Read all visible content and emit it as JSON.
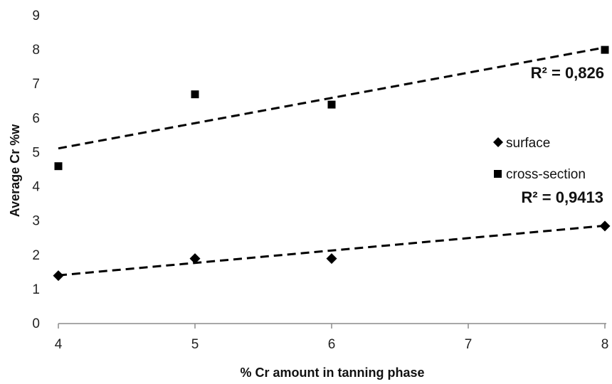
{
  "chart_data": {
    "type": "scatter",
    "title": "",
    "xlabel": "% Cr amount in tanning phase",
    "ylabel": "Average Cr %w",
    "xlim": [
      4,
      8
    ],
    "ylim": [
      0,
      9
    ],
    "x_ticks": [
      "4",
      "5",
      "6",
      "7",
      "8"
    ],
    "y_ticks": [
      "0",
      "1",
      "2",
      "3",
      "4",
      "5",
      "6",
      "7",
      "8",
      "9"
    ],
    "grid": false,
    "legend_position": "right",
    "series": [
      {
        "name": "surface",
        "marker": "diamond",
        "color": "#000000",
        "points": [
          [
            4,
            1.4
          ],
          [
            5,
            1.9
          ],
          [
            6,
            1.9
          ],
          [
            8,
            2.85
          ]
        ],
        "trendline": {
          "type": "linear",
          "style": "dashed",
          "from": [
            4,
            1.41
          ],
          "to": [
            8,
            2.86
          ]
        },
        "r2_label": "R² = 0,9413"
      },
      {
        "name": "cross-section",
        "marker": "square",
        "color": "#000000",
        "points": [
          [
            4,
            4.6
          ],
          [
            5,
            6.7
          ],
          [
            6,
            6.4
          ],
          [
            8,
            8.0
          ]
        ],
        "trendline": {
          "type": "linear",
          "style": "dashed",
          "from": [
            4,
            5.12
          ],
          "to": [
            8,
            8.07
          ]
        },
        "r2_label": "R² = 0,826"
      }
    ]
  }
}
